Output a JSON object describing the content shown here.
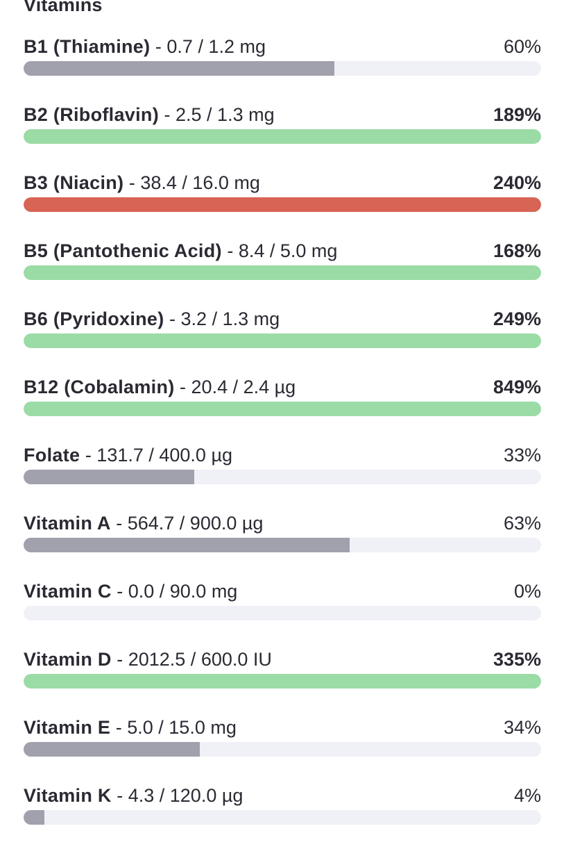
{
  "section_title": "Vitamins",
  "colors": {
    "under": "#a0a1ad",
    "good": "#9bdba6",
    "high": "#d76454",
    "track": "#f0f0f7"
  },
  "vitamins": [
    {
      "name": "B1 (Thiamine)",
      "amount": " - 0.7 / 1.2 mg",
      "percent_label": "60%",
      "percent": 60,
      "status": "under"
    },
    {
      "name": "B2 (Riboflavin)",
      "amount": " - 2.5 / 1.3 mg",
      "percent_label": "189%",
      "percent": 189,
      "status": "good"
    },
    {
      "name": "B3 (Niacin)",
      "amount": " - 38.4 / 16.0 mg",
      "percent_label": "240%",
      "percent": 240,
      "status": "high"
    },
    {
      "name": "B5 (Pantothenic Acid)",
      "amount": " - 8.4 / 5.0 mg",
      "percent_label": "168%",
      "percent": 168,
      "status": "good"
    },
    {
      "name": "B6 (Pyridoxine)",
      "amount": " - 3.2 / 1.3 mg",
      "percent_label": "249%",
      "percent": 249,
      "status": "good"
    },
    {
      "name": "B12 (Cobalamin)",
      "amount": " - 20.4 / 2.4 µg",
      "percent_label": "849%",
      "percent": 849,
      "status": "good"
    },
    {
      "name": "Folate",
      "amount": " - 131.7 / 400.0 µg",
      "percent_label": "33%",
      "percent": 33,
      "status": "under"
    },
    {
      "name": "Vitamin A",
      "amount": " - 564.7 / 900.0 µg",
      "percent_label": "63%",
      "percent": 63,
      "status": "under"
    },
    {
      "name": "Vitamin C",
      "amount": " - 0.0 / 90.0 mg",
      "percent_label": "0%",
      "percent": 0,
      "status": "under"
    },
    {
      "name": "Vitamin D",
      "amount": " - 2012.5 / 600.0 IU",
      "percent_label": "335%",
      "percent": 335,
      "status": "good"
    },
    {
      "name": "Vitamin E",
      "amount": " - 5.0 / 15.0 mg",
      "percent_label": "34%",
      "percent": 34,
      "status": "under"
    },
    {
      "name": "Vitamin K",
      "amount": " - 4.3 / 120.0 µg",
      "percent_label": "4%",
      "percent": 4,
      "status": "under"
    }
  ]
}
